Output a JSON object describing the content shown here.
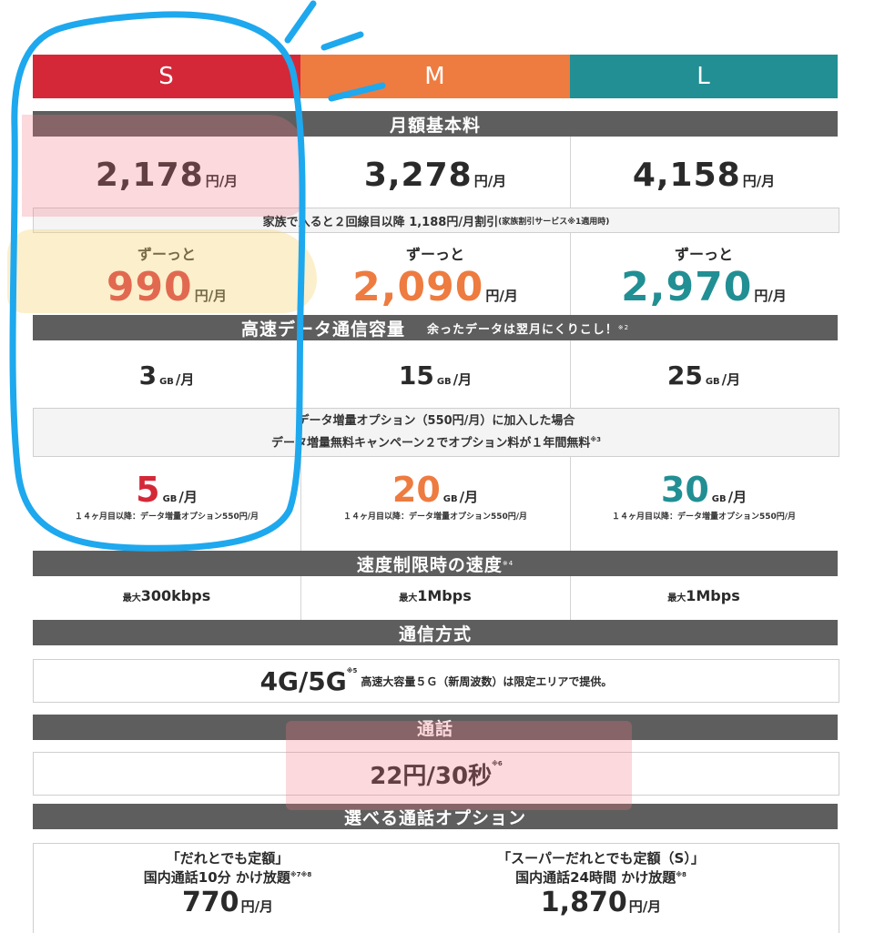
{
  "plans": [
    {
      "name": "S",
      "color": "#d42838"
    },
    {
      "name": "M",
      "color": "#ee7b40"
    },
    {
      "name": "L",
      "color": "#218f93"
    }
  ],
  "monthly_fee": {
    "title": "月額基本料",
    "prices": [
      "2,178",
      "3,278",
      "4,158"
    ],
    "unit": "円/月",
    "family_note": "家族で入ると２回線目以降 1,188円/月割引",
    "family_note_small": "(家族割引サービス※1適用時)",
    "zutto_label": "ずーっと",
    "discounted": [
      "990",
      "2,090",
      "2,970"
    ]
  },
  "data": {
    "title": "高速データ通信容量",
    "subtitle": "余ったデータは翌月にくりこし！",
    "subtitle_sup": "※2",
    "amounts": [
      "3",
      "15",
      "25"
    ],
    "unit_gb": "GB",
    "unit_month": "/月",
    "option_line1": "データ増量オプション（550円/月）に加入した場合",
    "option_line2": "データ増量無料キャンペーン２でオプション料が１年間無料",
    "option_sup": "※3",
    "increased": [
      "5",
      "20",
      "30"
    ],
    "after_note": "１４ヶ月目以降：データ増量オプション550円/月"
  },
  "speed_limit": {
    "title": "速度制限時の速度",
    "sup": "※4",
    "prefix": "最大",
    "values": [
      "300kbps",
      "1Mbps",
      "1Mbps"
    ]
  },
  "network": {
    "title": "通信方式",
    "value": "4G/5G",
    "sup": "※5",
    "note": "高速大容量５Ｇ（新周波数）は限定エリアで提供。"
  },
  "call": {
    "title": "通話",
    "value": "22円/30秒",
    "sup": "※6"
  },
  "call_options": {
    "title": "選べる通話オプション",
    "items": [
      {
        "name": "「だれとでも定額」",
        "desc": "国内通話10分 かけ放題",
        "sup": "※7※8",
        "price": "770"
      },
      {
        "name": "「スーパーだれとでも定額（S）」",
        "desc": "国内通話24時間 かけ放題",
        "sup": "※8",
        "price": "1,870"
      }
    ],
    "unit": "円/月"
  }
}
